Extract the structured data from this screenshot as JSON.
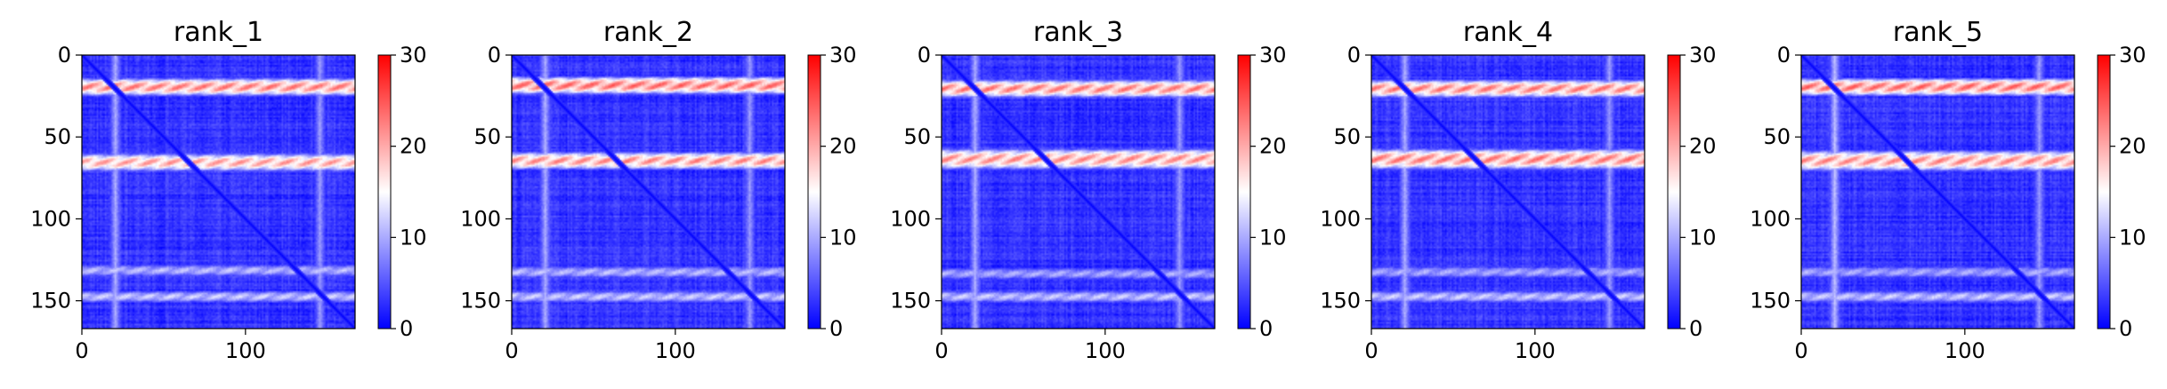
{
  "chart_data": [
    {
      "type": "heatmap",
      "title": "rank_1",
      "n": 167,
      "x_ticks": [
        0,
        100
      ],
      "y_ticks": [
        0,
        50,
        100,
        150
      ],
      "xlim": [
        0,
        167
      ],
      "ylim": [
        167,
        0
      ],
      "colorbar": {
        "min": 0,
        "max": 30,
        "ticks": [
          0,
          10,
          20,
          30
        ]
      },
      "bands": [
        {
          "row_center": 19,
          "row_half_width": 5,
          "col_start": 0,
          "col_end": 167,
          "value": 24
        },
        {
          "row_center": 65,
          "row_half_width": 5,
          "col_start": 0,
          "col_end": 167,
          "value": 22
        },
        {
          "row_center": 131,
          "row_half_width": 3,
          "col_start": 0,
          "col_end": 167,
          "value": 12
        },
        {
          "row_center": 147,
          "row_half_width": 3,
          "col_start": 0,
          "col_end": 167,
          "value": 13
        }
      ],
      "column_stripes": [
        {
          "col_center": 20,
          "half_width": 4,
          "value": 10
        },
        {
          "col_center": 145,
          "half_width": 4,
          "value": 9
        }
      ],
      "diagonal_value": 0
    },
    {
      "type": "heatmap",
      "title": "rank_2",
      "n": 167,
      "x_ticks": [
        0,
        100
      ],
      "y_ticks": [
        0,
        50,
        100,
        150
      ],
      "xlim": [
        0,
        167
      ],
      "ylim": [
        167,
        0
      ],
      "colorbar": {
        "min": 0,
        "max": 30,
        "ticks": [
          0,
          10,
          20,
          30
        ]
      },
      "bands": [
        {
          "row_center": 18,
          "row_half_width": 5,
          "col_start": 0,
          "col_end": 167,
          "value": 25
        },
        {
          "row_center": 64,
          "row_half_width": 5,
          "col_start": 0,
          "col_end": 167,
          "value": 23
        },
        {
          "row_center": 132,
          "row_half_width": 3,
          "col_start": 0,
          "col_end": 167,
          "value": 12
        },
        {
          "row_center": 147,
          "row_half_width": 3,
          "col_start": 0,
          "col_end": 167,
          "value": 13
        }
      ],
      "column_stripes": [
        {
          "col_center": 20,
          "half_width": 4,
          "value": 10
        },
        {
          "col_center": 145,
          "half_width": 4,
          "value": 9
        }
      ],
      "diagonal_value": 0
    },
    {
      "type": "heatmap",
      "title": "rank_3",
      "n": 167,
      "x_ticks": [
        0,
        100
      ],
      "y_ticks": [
        0,
        50,
        100,
        150
      ],
      "xlim": [
        0,
        167
      ],
      "ylim": [
        167,
        0
      ],
      "colorbar": {
        "min": 0,
        "max": 30,
        "ticks": [
          0,
          10,
          20,
          30
        ]
      },
      "bands": [
        {
          "row_center": 20,
          "row_half_width": 5,
          "col_start": 0,
          "col_end": 167,
          "value": 24
        },
        {
          "row_center": 63,
          "row_half_width": 6,
          "col_start": 0,
          "col_end": 167,
          "value": 23
        },
        {
          "row_center": 133,
          "row_half_width": 3,
          "col_start": 0,
          "col_end": 167,
          "value": 11
        },
        {
          "row_center": 147,
          "row_half_width": 3,
          "col_start": 0,
          "col_end": 167,
          "value": 13
        }
      ],
      "column_stripes": [
        {
          "col_center": 20,
          "half_width": 4,
          "value": 10
        },
        {
          "col_center": 145,
          "half_width": 4,
          "value": 9
        }
      ],
      "diagonal_value": 0
    },
    {
      "type": "heatmap",
      "title": "rank_4",
      "n": 167,
      "x_ticks": [
        0,
        100
      ],
      "y_ticks": [
        0,
        50,
        100,
        150
      ],
      "xlim": [
        0,
        167
      ],
      "ylim": [
        167,
        0
      ],
      "colorbar": {
        "min": 0,
        "max": 30,
        "ticks": [
          0,
          10,
          20,
          30
        ]
      },
      "bands": [
        {
          "row_center": 20,
          "row_half_width": 5,
          "col_start": 0,
          "col_end": 167,
          "value": 24
        },
        {
          "row_center": 63,
          "row_half_width": 6,
          "col_start": 0,
          "col_end": 167,
          "value": 24
        },
        {
          "row_center": 132,
          "row_half_width": 3,
          "col_start": 0,
          "col_end": 167,
          "value": 11
        },
        {
          "row_center": 147,
          "row_half_width": 3,
          "col_start": 0,
          "col_end": 167,
          "value": 13
        }
      ],
      "column_stripes": [
        {
          "col_center": 20,
          "half_width": 4,
          "value": 10
        },
        {
          "col_center": 145,
          "half_width": 4,
          "value": 9
        }
      ],
      "diagonal_value": 0
    },
    {
      "type": "heatmap",
      "title": "rank_5",
      "n": 167,
      "x_ticks": [
        0,
        100
      ],
      "y_ticks": [
        0,
        50,
        100,
        150
      ],
      "xlim": [
        0,
        167
      ],
      "ylim": [
        167,
        0
      ],
      "colorbar": {
        "min": 0,
        "max": 30,
        "ticks": [
          0,
          10,
          20,
          30
        ]
      },
      "bands": [
        {
          "row_center": 19,
          "row_half_width": 5,
          "col_start": 0,
          "col_end": 167,
          "value": 25
        },
        {
          "row_center": 64,
          "row_half_width": 6,
          "col_start": 0,
          "col_end": 167,
          "value": 23
        },
        {
          "row_center": 132,
          "row_half_width": 3,
          "col_start": 0,
          "col_end": 167,
          "value": 11
        },
        {
          "row_center": 147,
          "row_half_width": 3,
          "col_start": 0,
          "col_end": 167,
          "value": 13
        }
      ],
      "column_stripes": [
        {
          "col_center": 20,
          "half_width": 4,
          "value": 11
        },
        {
          "col_center": 145,
          "half_width": 4,
          "value": 9
        }
      ],
      "diagonal_value": 0
    }
  ],
  "colormap": {
    "low": "#0000ff",
    "mid": "#ffffff",
    "high": "#ff0000"
  }
}
